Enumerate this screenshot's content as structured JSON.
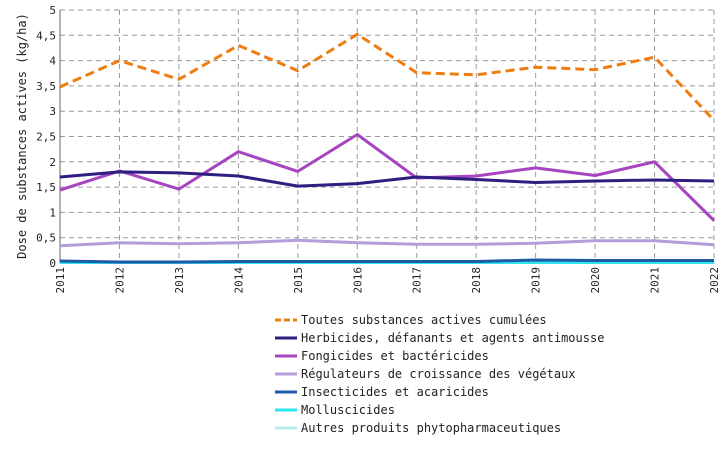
{
  "chart_data": {
    "type": "line",
    "title": "",
    "xlabel": "",
    "ylabel": "Dose de substances actives (kg/ha)",
    "x": [
      "2011",
      "2012",
      "2013",
      "2014",
      "2015",
      "2016",
      "2017",
      "2018",
      "2019",
      "2020",
      "2021",
      "2022"
    ],
    "ylim": [
      0,
      5
    ],
    "yticks": [
      "0",
      "0,5",
      "1",
      "1,5",
      "2",
      "2,5",
      "3",
      "3,5",
      "4",
      "4,5",
      "5"
    ],
    "grid": true,
    "legend_placement": "bottom",
    "series": [
      {
        "name": "Toutes substances actives cumulées",
        "color": "#ee7d11",
        "dashed": true,
        "values": [
          3.48,
          4.0,
          3.63,
          4.3,
          3.8,
          4.52,
          3.76,
          3.72,
          3.87,
          3.82,
          4.07,
          2.82
        ]
      },
      {
        "name": "Herbicides, défanants et agents antimousse",
        "color": "#2e1e7f",
        "dashed": false,
        "values": [
          1.7,
          1.8,
          1.78,
          1.72,
          1.52,
          1.57,
          1.7,
          1.65,
          1.59,
          1.62,
          1.64,
          1.62
        ]
      },
      {
        "name": "Fongicides et bactéricides",
        "color": "#a744c0",
        "dashed": false,
        "values": [
          1.44,
          1.82,
          1.46,
          2.2,
          1.81,
          2.54,
          1.68,
          1.72,
          1.88,
          1.73,
          2.0,
          0.84
        ]
      },
      {
        "name": "Régulateurs de croissance des végétaux",
        "color": "#b39ddb",
        "dashed": false,
        "values": [
          0.34,
          0.4,
          0.38,
          0.4,
          0.45,
          0.4,
          0.37,
          0.37,
          0.39,
          0.44,
          0.44,
          0.36
        ]
      },
      {
        "name": "Insecticides et acaricides",
        "color": "#1f5aa6",
        "dashed": false,
        "values": [
          0.04,
          0.02,
          0.02,
          0.03,
          0.03,
          0.03,
          0.03,
          0.03,
          0.06,
          0.05,
          0.05,
          0.05
        ]
      },
      {
        "name": "Molluscicides",
        "color": "#2fe6ee",
        "dashed": false,
        "values": [
          0.01,
          0.01,
          0.01,
          0.01,
          0.01,
          0.01,
          0.01,
          0.01,
          0.01,
          0.01,
          0.01,
          0.01
        ]
      },
      {
        "name": "Autres produits phytopharmaceutiques",
        "color": "#b7ece9",
        "dashed": false,
        "values": [
          0.02,
          0.02,
          0.02,
          0.02,
          0.02,
          0.02,
          0.02,
          0.02,
          0.02,
          0.02,
          0.02,
          0.02
        ]
      }
    ]
  }
}
